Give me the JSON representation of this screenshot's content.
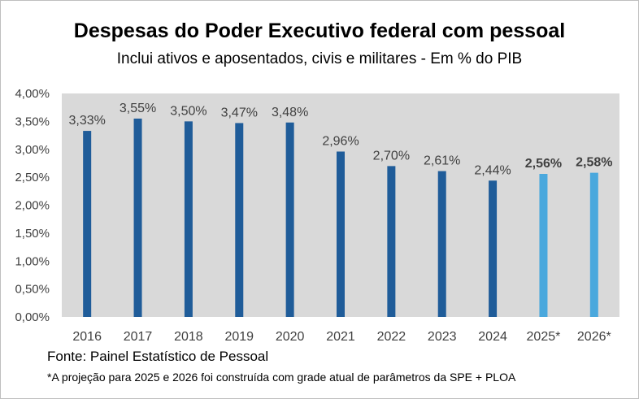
{
  "chart_data": {
    "type": "bar",
    "title": "Despesas do Poder Executivo federal com pessoal",
    "subtitle": "Inclui ativos e aposentados, civis e militares - Em % do PIB",
    "categories": [
      "2016",
      "2017",
      "2018",
      "2019",
      "2020",
      "2021",
      "2022",
      "2023",
      "2024",
      "2025*",
      "2026*"
    ],
    "values": [
      3.33,
      3.55,
      3.5,
      3.47,
      3.48,
      2.96,
      2.7,
      2.61,
      2.44,
      2.56,
      2.58
    ],
    "value_labels": [
      "3,33%",
      "3,55%",
      "3,50%",
      "3,47%",
      "3,48%",
      "2,96%",
      "2,70%",
      "2,61%",
      "2,44%",
      "2,56%",
      "2,58%"
    ],
    "projected": [
      false,
      false,
      false,
      false,
      false,
      false,
      false,
      false,
      false,
      true,
      true
    ],
    "ylim": [
      0,
      4
    ],
    "yticks": [
      0,
      0.5,
      1.0,
      1.5,
      2.0,
      2.5,
      3.0,
      3.5,
      4.0
    ],
    "ytick_labels": [
      "0,00%",
      "0,50%",
      "1,00%",
      "1,50%",
      "2,00%",
      "2,50%",
      "3,00%",
      "3,50%",
      "4,00%"
    ],
    "xlabel": "",
    "ylabel": "",
    "grid": false,
    "colors": {
      "actual": "#1f5c99",
      "projected": "#4aa8dd",
      "plot_background": "#d9d9d9",
      "label_text": "#404040"
    }
  },
  "source": "Fonte: Painel Estatístico de Pessoal",
  "footnote": "*A projeção para 2025 e 2026 foi construída com grade atual de parâmetros da SPE + PLOA"
}
